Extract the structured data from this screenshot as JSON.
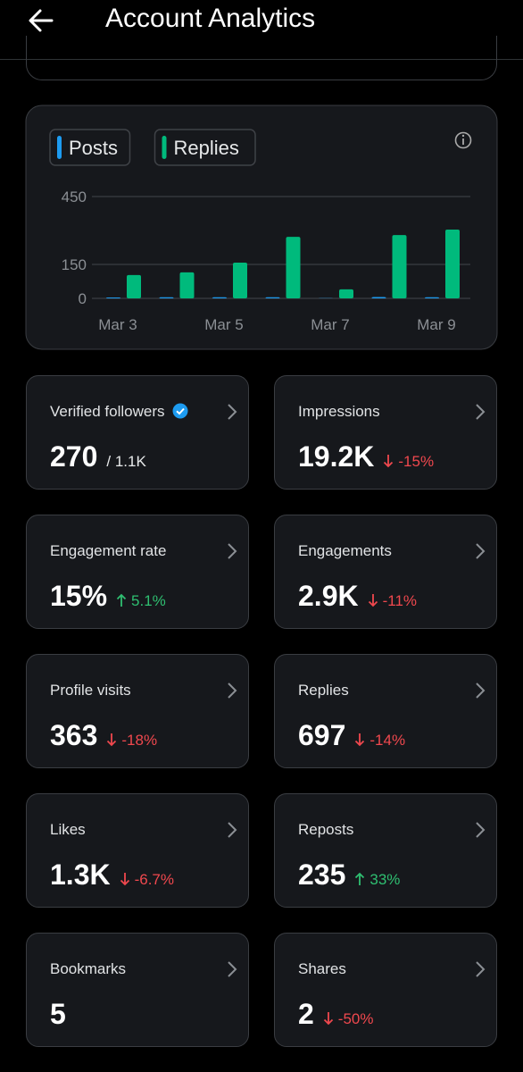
{
  "header": {
    "title": "Account Analytics"
  },
  "chart_data": {
    "type": "bar",
    "categories": [
      "Mar 3",
      null,
      "Mar 5",
      null,
      "Mar 7",
      null,
      "Mar 9"
    ],
    "series": [
      {
        "name": "Posts",
        "color": "#1d9bf0",
        "values": [
          4,
          5,
          5,
          5,
          1,
          6,
          5
        ]
      },
      {
        "name": "Replies",
        "color": "#00ba7c",
        "values": [
          103,
          115,
          158,
          272,
          40,
          280,
          304
        ]
      }
    ],
    "ylim": [
      0,
      450
    ],
    "yticks": [
      0,
      150,
      450
    ],
    "grid": true
  },
  "cards": [
    {
      "title": "Verified followers",
      "value": "270",
      "total": "/ 1.1K",
      "verified": true
    },
    {
      "title": "Impressions",
      "value": "19.2K",
      "change": "-15%",
      "direction": "down"
    },
    {
      "title": "Engagement rate",
      "value": "15%",
      "change": "5.1%",
      "direction": "up"
    },
    {
      "title": "Engagements",
      "value": "2.9K",
      "change": "-11%",
      "direction": "down"
    },
    {
      "title": "Profile visits",
      "value": "363",
      "change": "-18%",
      "direction": "down"
    },
    {
      "title": "Replies",
      "value": "697",
      "change": "-14%",
      "direction": "down"
    },
    {
      "title": "Likes",
      "value": "1.3K",
      "change": "-6.7%",
      "direction": "down"
    },
    {
      "title": "Reposts",
      "value": "235",
      "change": "33%",
      "direction": "up"
    },
    {
      "title": "Bookmarks",
      "value": "5"
    },
    {
      "title": "Shares",
      "value": "2",
      "change": "-50%",
      "direction": "down"
    }
  ]
}
